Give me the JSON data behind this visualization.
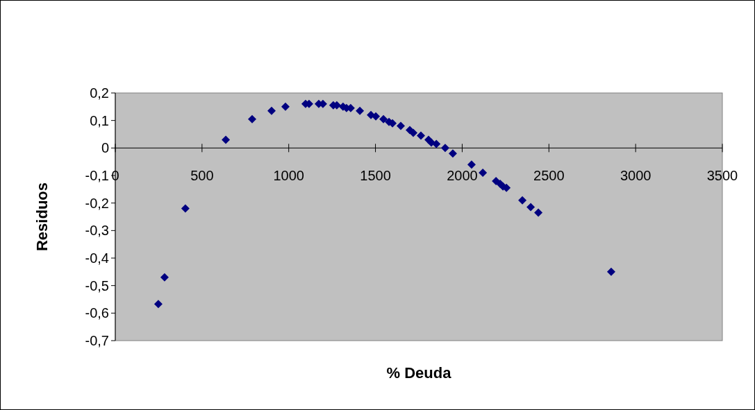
{
  "chart_data": {
    "type": "scatter",
    "xlabel": "% Deuda",
    "ylabel": "Residuos",
    "marker": "diamond",
    "grid": false,
    "xlim": [
      0,
      3500
    ],
    "xticks": [
      0,
      500,
      1000,
      1500,
      2000,
      2500,
      3000,
      3500
    ],
    "ylim": [
      -0.7,
      0.2
    ],
    "yticks": [
      {
        "value": 0.2,
        "label": "0,2"
      },
      {
        "value": 0.1,
        "label": "0,1"
      },
      {
        "value": 0,
        "label": "0"
      },
      {
        "value": -0.1,
        "label": "-0,1"
      },
      {
        "value": -0.2,
        "label": "-0,2"
      },
      {
        "value": -0.3,
        "label": "-0,3"
      },
      {
        "value": -0.4,
        "label": "-0,4"
      },
      {
        "value": -0.5,
        "label": "-0,5"
      },
      {
        "value": -0.6,
        "label": "-0,6"
      },
      {
        "value": -0.7,
        "label": "-0,7"
      }
    ],
    "series": [
      {
        "color": "#000080",
        "x": [
          248,
          284,
          404,
          637,
          789,
          901,
          981,
          1097,
          1117,
          1173,
          1197,
          1257,
          1277,
          1313,
          1333,
          1357,
          1410,
          1474,
          1502,
          1546,
          1578,
          1598,
          1646,
          1698,
          1718,
          1762,
          1806,
          1822,
          1851,
          1902,
          1946,
          2054,
          2119,
          2195,
          2219,
          2235,
          2255,
          2347,
          2395,
          2439,
          2859
        ],
        "values": [
          -0.567,
          -0.47,
          -0.22,
          0.03,
          0.105,
          0.135,
          0.15,
          0.16,
          0.16,
          0.16,
          0.16,
          0.155,
          0.155,
          0.15,
          0.145,
          0.145,
          0.135,
          0.12,
          0.115,
          0.105,
          0.095,
          0.09,
          0.08,
          0.065,
          0.055,
          0.045,
          0.03,
          0.02,
          0.015,
          0,
          -0.02,
          -0.06,
          -0.09,
          -0.12,
          -0.13,
          -0.14,
          -0.145,
          -0.19,
          -0.215,
          -0.235,
          -0.45
        ]
      }
    ]
  }
}
